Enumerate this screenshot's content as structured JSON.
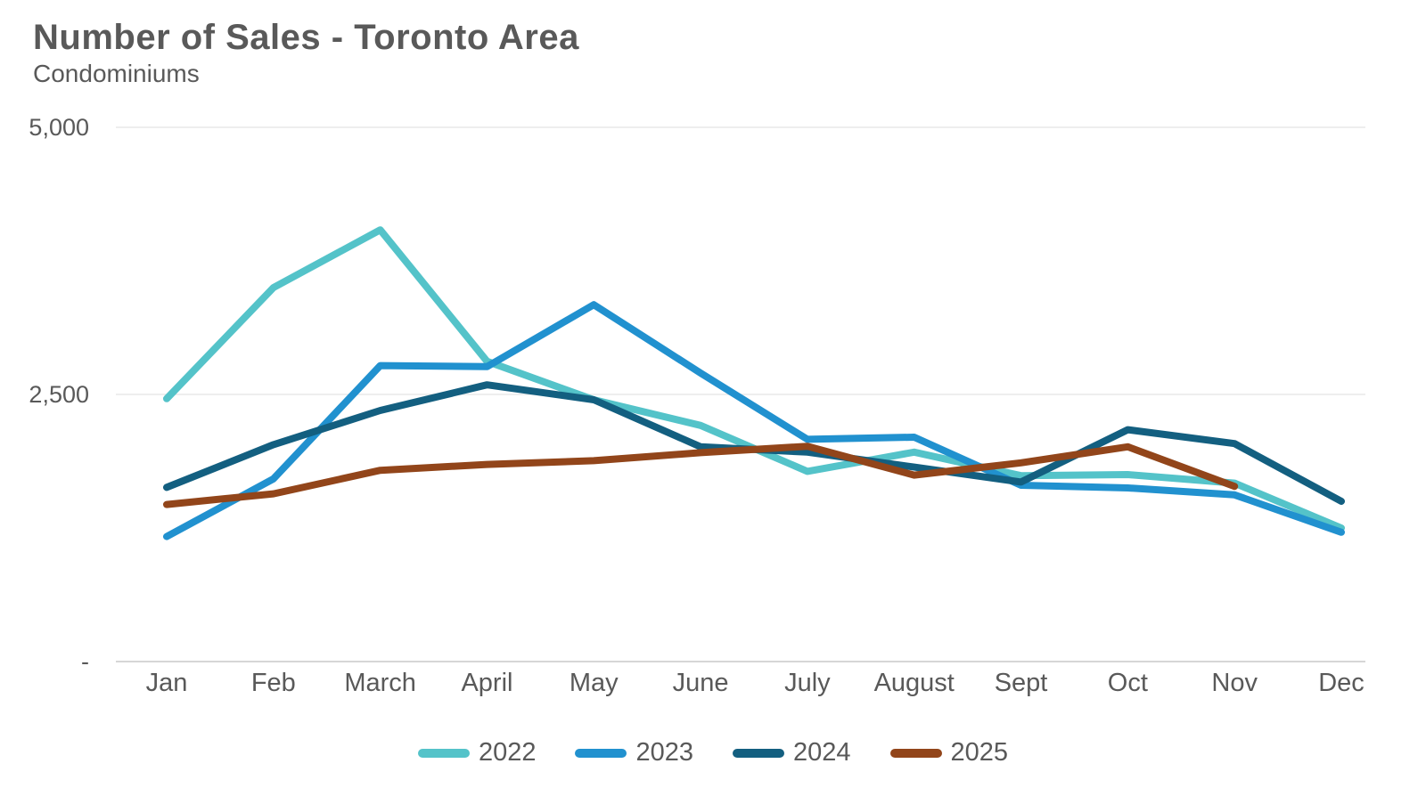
{
  "header": {
    "title": "Number of Sales - Toronto Area",
    "subtitle": "Condominiums"
  },
  "chart_data": {
    "type": "line",
    "title": "Number of Sales - Toronto Area",
    "subtitle": "Condominiums",
    "categories": [
      "Jan",
      "Feb",
      "March",
      "April",
      "May",
      "June",
      "July",
      "August",
      "Sept",
      "Oct",
      "Nov",
      "Dec"
    ],
    "y_axis": {
      "tick_labels": [
        "-",
        "2,500",
        "5,000"
      ],
      "tick_values": [
        0,
        2500,
        5000
      ],
      "ylim": [
        0,
        5000
      ]
    },
    "grid": "horizontal",
    "legend_position": "bottom",
    "series": [
      {
        "name": "2022",
        "color": "#54C3C9",
        "values": [
          2460,
          3500,
          4040,
          2810,
          2450,
          2210,
          1780,
          1960,
          1740,
          1750,
          1670,
          1250
        ]
      },
      {
        "name": "2023",
        "color": "#2191CF",
        "values": [
          1170,
          1710,
          2770,
          2760,
          3340,
          2700,
          2080,
          2100,
          1650,
          1625,
          1560,
          1210
        ]
      },
      {
        "name": "2024",
        "color": "#135F80",
        "values": [
          1630,
          2030,
          2350,
          2590,
          2450,
          2010,
          1960,
          1820,
          1680,
          2170,
          2040,
          1500
        ]
      },
      {
        "name": "2025",
        "color": "#92451A",
        "values": [
          1470,
          1570,
          1790,
          1845,
          1880,
          1955,
          2015,
          1745,
          1860,
          2010,
          1640,
          null
        ]
      }
    ]
  },
  "colors": {
    "text": "#595959",
    "gridline": "#E8E8E8",
    "axis_line": "#D6D6D6",
    "background": "#FFFFFF"
  }
}
